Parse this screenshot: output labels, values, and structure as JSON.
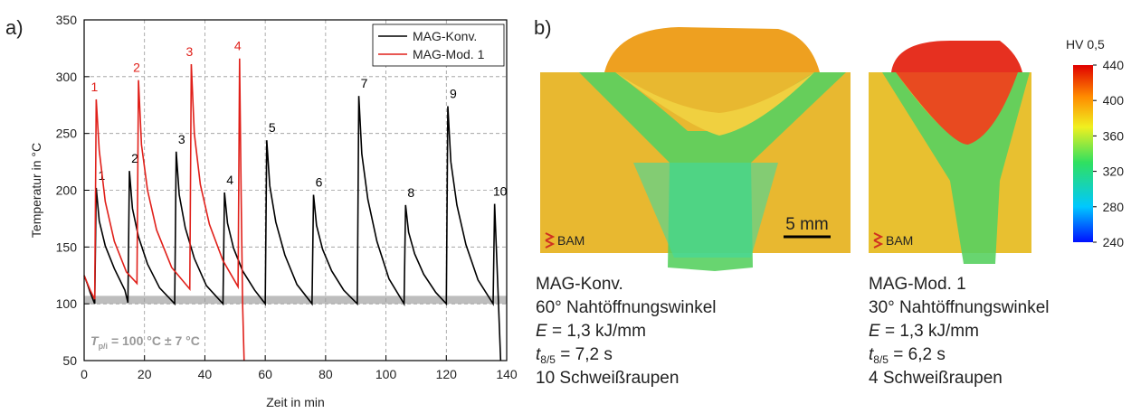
{
  "chart_data": {
    "type": "line",
    "panel_label": "a)",
    "x_label": "Zeit in min",
    "y_label": "Temperatur in °C",
    "xlim": [
      0,
      140
    ],
    "xticks": [
      0,
      20,
      40,
      60,
      80,
      100,
      120,
      140
    ],
    "ylim": [
      50,
      350
    ],
    "yticks": [
      50,
      100,
      150,
      200,
      250,
      300,
      350
    ],
    "grid": true,
    "legend": "top-right",
    "band": {
      "range": [
        100,
        107
      ],
      "color": "#bdbdbd",
      "label_var": "T",
      "label_sub": "p/i",
      "label_text": " = 100 °C ± 7 °C"
    },
    "series": [
      {
        "name": "MAG-Konv.",
        "color": "#000000",
        "x": [
          0,
          1,
          2,
          3.5,
          4,
          5,
          7,
          10,
          13.5,
          14.5,
          15,
          16,
          18,
          21,
          25,
          30,
          30.5,
          31.5,
          33.5,
          36.5,
          40.5,
          46,
          46.5,
          47.5,
          49.5,
          52.5,
          56.5,
          60,
          60.5,
          61.5,
          63.5,
          66.5,
          70.5,
          75.5,
          76,
          77,
          79,
          82,
          86,
          90.5,
          91,
          92,
          94,
          97,
          101,
          106,
          106.5,
          107.5,
          109.5,
          112.5,
          116.5,
          120,
          120.5,
          121.5,
          123.5,
          126.5,
          130.5,
          135.5,
          136,
          137,
          138
        ],
        "values": [
          125,
          118,
          110,
          100,
          202,
          173,
          151,
          131,
          112,
          101,
          217,
          184,
          159,
          135,
          114,
          100,
          234,
          196,
          167,
          140,
          116,
          100,
          198,
          171,
          149,
          129,
          112,
          100,
          244,
          204,
          172,
          143,
          117,
          100,
          196,
          169,
          148,
          129,
          112,
          100,
          283,
          232,
          192,
          155,
          122,
          100,
          187,
          163,
          144,
          126,
          110,
          100,
          274,
          225,
          187,
          152,
          121,
          100,
          188,
          120,
          50
        ],
        "point_labels": [
          null,
          null,
          null,
          null,
          "1",
          null,
          null,
          null,
          null,
          null,
          "2",
          null,
          null,
          null,
          null,
          null,
          "3",
          null,
          null,
          null,
          null,
          null,
          "4",
          null,
          null,
          null,
          null,
          null,
          "5",
          null,
          null,
          null,
          null,
          null,
          "6",
          null,
          null,
          null,
          null,
          null,
          "7",
          null,
          null,
          null,
          null,
          null,
          "8",
          null,
          null,
          null,
          null,
          null,
          "9",
          null,
          null,
          null,
          null,
          null,
          "10",
          null,
          null
        ]
      },
      {
        "name": "MAG-Mod. 1",
        "color": "#e0201a",
        "x": [
          0,
          2,
          3.5,
          4,
          5,
          7,
          10,
          14,
          17.5,
          18,
          19,
          21,
          24,
          29,
          35,
          35.5,
          36.5,
          38.5,
          41.5,
          46,
          51,
          51.5,
          52,
          52.5,
          53
        ],
        "values": [
          125,
          112,
          104,
          280,
          235,
          190,
          155,
          128,
          118,
          297,
          240,
          200,
          165,
          132,
          113,
          311,
          250,
          205,
          170,
          138,
          115,
          316,
          200,
          100,
          50
        ],
        "point_labels": [
          null,
          null,
          null,
          "1",
          null,
          null,
          null,
          null,
          null,
          "2",
          null,
          null,
          null,
          null,
          null,
          "3",
          null,
          null,
          null,
          null,
          null,
          "4",
          null,
          null,
          null
        ]
      }
    ]
  },
  "panel_b": {
    "panel_label": "b)",
    "scale_bar": "5 mm",
    "logo": [
      "BAM",
      "BAM"
    ],
    "colorbar": {
      "title": "HV 0,5",
      "lim": [
        240,
        440
      ],
      "ticks": [
        240,
        280,
        320,
        360,
        400,
        440
      ]
    },
    "captions": [
      {
        "name": "MAG-Konv.",
        "angle": "60° Nahtöffnungswinkel",
        "e_var": "E",
        "e_text": " = 1,3 kJ/mm",
        "t_var": "t",
        "t_sub": "8/5",
        "t_text": " = 7,2 s",
        "beads": "10 Schweißraupen"
      },
      {
        "name": "MAG-Mod. 1",
        "angle": "30° Nahtöffnungswinkel",
        "e_var": "E",
        "e_text": " = 1,3 kJ/mm",
        "t_var": "t",
        "t_sub": "8/5",
        "t_text": " = 6,2 s",
        "beads": "4 Schweißraupen"
      }
    ]
  }
}
